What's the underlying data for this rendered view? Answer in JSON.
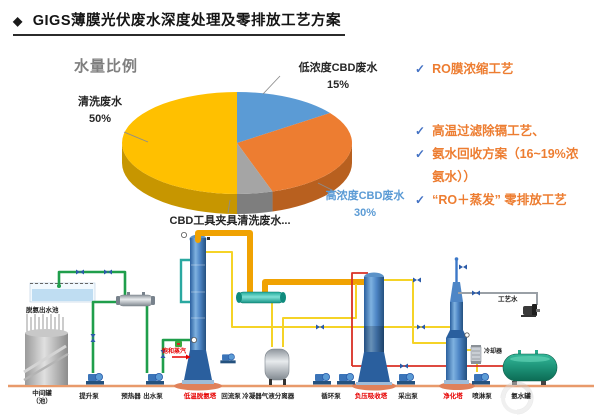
{
  "header": {
    "bullet": "◆",
    "title": "GIGS薄膜光伏废水深度处理及零排放工艺方案"
  },
  "chart_data": {
    "type": "pie",
    "title": "水量比例",
    "slices": [
      {
        "label": "低浓度CBD废水",
        "value": 15,
        "color": "#5B9BD5",
        "side": "#41729F"
      },
      {
        "label": "高浓度CBD废水",
        "value": 30,
        "color": "#ED7D31",
        "side": "#B8601F"
      },
      {
        "label": "CBD工具夹具清洗废水",
        "value": 5,
        "color": "#A5A5A5",
        "side": "#7E7E7E"
      },
      {
        "label": "清洗废水",
        "value": 50,
        "color": "#FFC000",
        "side": "#C79600"
      }
    ],
    "style": "3d-pie",
    "legend_position": "none",
    "labels_on_chart": true
  },
  "pie_labels": {
    "low": {
      "name": "低浓度CBD废水",
      "value": "15%"
    },
    "wash": {
      "name": "清洗废水",
      "value": "50%"
    },
    "high": {
      "name": "高浓度CBD废水",
      "value": "30%"
    },
    "tool": {
      "name": "CBD工具夹具清洗废水..."
    }
  },
  "bullets": {
    "check": "✓",
    "group1": [
      {
        "text": "RO膜浓缩工艺"
      }
    ],
    "group2": [
      {
        "text": "高温过滤除镉工艺、"
      },
      {
        "text": "氨水回收方案（16~19%浓氨水））"
      },
      {
        "text": "“RO＋蒸发” 零排放工艺"
      }
    ]
  },
  "diagram": {
    "labels": {
      "pool": "脱氨出水池",
      "tank_l1": "中间罐",
      "tank_l2": "（池）",
      "lift_pump": "提升泵",
      "preheater": "预热器",
      "outlet_pump": "出水泵",
      "ammonia_tower": "低温脱氨塔",
      "steam": "饱和蒸汽",
      "reflux_pump": "回流泵",
      "condenser": "冷凝器",
      "separator": "气液分离器",
      "circ_pump": "循环泵",
      "vacuum_tower": "负压吸收塔",
      "extract_pump": "采出泵",
      "purify_tower": "净化塔",
      "spray_pump": "喷淋泵",
      "ammonia_tank": "氨水罐",
      "cooler": "冷却器",
      "process_water": "工艺水"
    }
  },
  "colors": {
    "accent_orange": "#ED7D31",
    "check_blue": "#4472C4",
    "label_blue": "#5B9BD5",
    "red_label": "#E60000",
    "ground": "#E89A6B"
  }
}
